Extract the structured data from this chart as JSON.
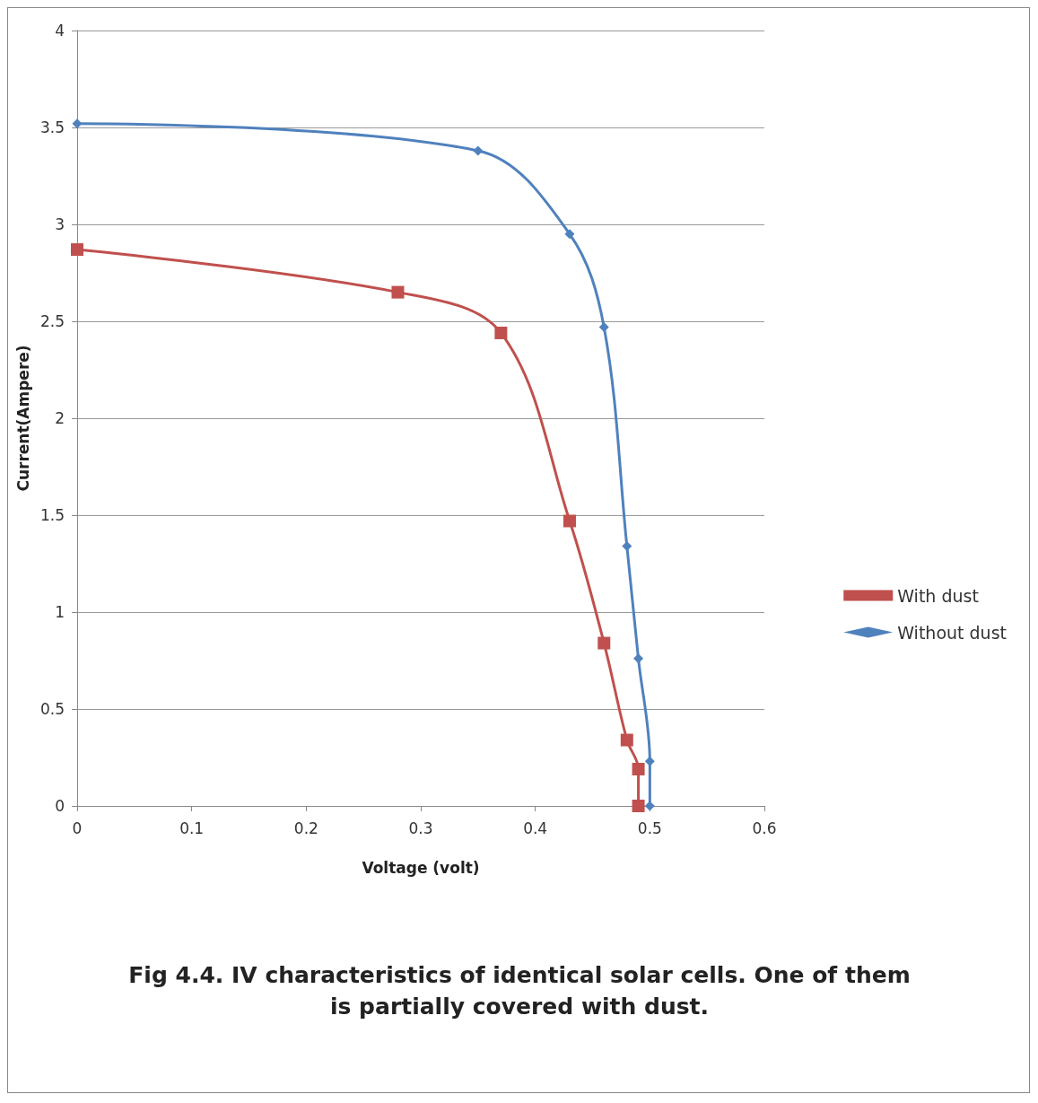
{
  "chart_data": {
    "type": "line",
    "xlabel": "Voltage (volt)",
    "ylabel": "Current(Ampere)",
    "xlim": [
      0,
      0.6
    ],
    "xticks": [
      0,
      0.1,
      0.2,
      0.3,
      0.4,
      0.5,
      0.6
    ],
    "ylim": [
      0,
      4
    ],
    "yticks": [
      0,
      0.5,
      1,
      1.5,
      2,
      2.5,
      3,
      3.5,
      4
    ],
    "grid": "y",
    "legend": "right",
    "annotations": [
      "Fig 4.4.  IV characteristics of identical  solar cells. One of them is partially covered with dust."
    ],
    "series": [
      {
        "name": "With dust",
        "color": "#c0504d",
        "marker": "square",
        "x": [
          0,
          0.28,
          0.37,
          0.43,
          0.46,
          0.48,
          0.49,
          0.49
        ],
        "values": [
          2.87,
          2.65,
          2.44,
          1.47,
          0.84,
          0.34,
          0.19,
          0
        ]
      },
      {
        "name": "Without dust",
        "color": "#4f81bd",
        "marker": "diamond",
        "x": [
          0,
          0.35,
          0.43,
          0.46,
          0.48,
          0.49,
          0.5,
          0.5
        ],
        "values": [
          3.52,
          3.38,
          2.95,
          2.47,
          1.34,
          0.76,
          0.23,
          0
        ]
      }
    ]
  }
}
